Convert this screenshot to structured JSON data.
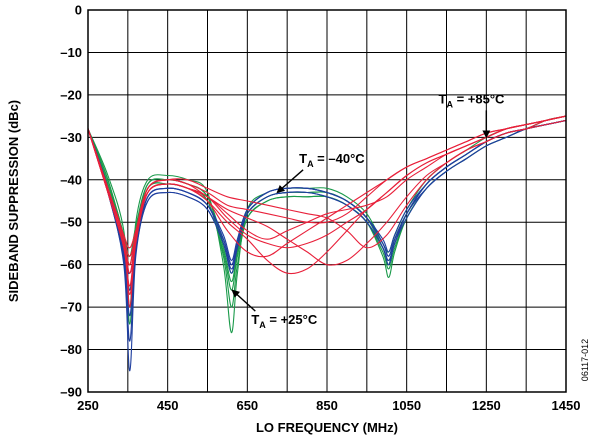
{
  "chart_data": {
    "type": "line",
    "title": "",
    "xlabel": "LO FREQUENCY (MHz)",
    "ylabel": "SIDEBAND SUPPRESSION (dBc)",
    "xlim": [
      250,
      1450
    ],
    "ylim": [
      -90,
      0
    ],
    "xticks": [
      250,
      350,
      450,
      550,
      650,
      750,
      850,
      950,
      1050,
      1150,
      1250,
      1350,
      1450
    ],
    "xtick_labels": [
      "250",
      "",
      "450",
      "",
      "650",
      "",
      "850",
      "",
      "1050",
      "",
      "1250",
      "",
      "1450"
    ],
    "yticks": [
      0,
      -10,
      -20,
      -30,
      -40,
      -50,
      -60,
      -70,
      -80,
      -90
    ],
    "ytick_labels": [
      "0",
      "–10",
      "–20",
      "–30",
      "–40",
      "–50",
      "–60",
      "–70",
      "–80",
      "–90"
    ],
    "grid": true,
    "figure_id": "06117-012",
    "colors": {
      "cold": "#1f3f9f",
      "room": "#1a9a4a",
      "hot": "#e8203a"
    },
    "series": [
      {
        "group": "+25°C",
        "color": "#1a9a4a",
        "x": [
          250,
          300,
          340,
          355,
          370,
          400,
          450,
          500,
          550,
          590,
          610,
          625,
          650,
          700,
          750,
          800,
          850,
          900,
          950,
          990,
          1005,
          1020,
          1050,
          1100,
          1150,
          1200,
          1250,
          1300,
          1350,
          1400,
          1450
        ],
        "y": [
          -28,
          -40,
          -54,
          -60,
          -52,
          -41,
          -40,
          -41,
          -44,
          -56,
          -64,
          -57,
          -48,
          -44,
          -43,
          -43,
          -43,
          -45,
          -49,
          -56,
          -59,
          -55,
          -48,
          -41,
          -37,
          -34,
          -31,
          -29,
          -28,
          -26,
          -25
        ]
      },
      {
        "group": "+25°C",
        "color": "#1a9a4a",
        "x": [
          250,
          300,
          340,
          355,
          370,
          400,
          450,
          500,
          550,
          590,
          610,
          625,
          650,
          700,
          750,
          800,
          850,
          900,
          950,
          990,
          1005,
          1020,
          1050,
          1100,
          1150,
          1200,
          1250,
          1300,
          1350,
          1400,
          1450
        ],
        "y": [
          -28,
          -41,
          -55,
          -66,
          -54,
          -42,
          -41,
          -42,
          -45,
          -58,
          -70,
          -60,
          -49,
          -45,
          -44,
          -44,
          -44,
          -46,
          -50,
          -57,
          -61,
          -56,
          -49,
          -42,
          -38,
          -35,
          -32,
          -30,
          -28,
          -27,
          -26
        ]
      },
      {
        "group": "+25°C",
        "color": "#1a9a4a",
        "x": [
          250,
          300,
          340,
          355,
          370,
          400,
          450,
          500,
          550,
          590,
          610,
          625,
          650,
          700,
          750,
          800,
          850,
          900,
          950,
          990,
          1005,
          1020,
          1050,
          1100,
          1150,
          1200,
          1250,
          1300,
          1350,
          1400,
          1450
        ],
        "y": [
          -28,
          -39,
          -52,
          -70,
          -50,
          -40,
          -39,
          -40,
          -43,
          -60,
          -76,
          -62,
          -47,
          -43,
          -42,
          -42,
          -42,
          -44,
          -48,
          -55,
          -57,
          -53,
          -47,
          -40,
          -36,
          -33,
          -30,
          -28,
          -27,
          -26,
          -25
        ]
      },
      {
        "group": "+25°C",
        "color": "#1a9a4a",
        "x": [
          250,
          300,
          340,
          355,
          370,
          400,
          450,
          500,
          550,
          590,
          610,
          625,
          650,
          700,
          750,
          800,
          850,
          900,
          950,
          990,
          1005,
          1020,
          1050,
          1100,
          1150,
          1200,
          1250,
          1300,
          1350,
          1400,
          1450
        ],
        "y": [
          -28,
          -40,
          -53,
          -58,
          -51,
          -41,
          -40,
          -41,
          -44,
          -55,
          -62,
          -56,
          -48,
          -44,
          -43,
          -43,
          -43,
          -45,
          -49,
          -56,
          -60,
          -54,
          -48,
          -41,
          -37,
          -34,
          -31,
          -29,
          -28,
          -26,
          -25
        ]
      },
      {
        "group": "+25°C",
        "color": "#1a9a4a",
        "x": [
          250,
          300,
          340,
          355,
          370,
          400,
          450,
          500,
          550,
          590,
          610,
          625,
          650,
          700,
          750,
          800,
          850,
          900,
          950,
          990,
          1005,
          1020,
          1050,
          1100,
          1150,
          1200,
          1250,
          1300,
          1350,
          1400,
          1450
        ],
        "y": [
          -28,
          -41,
          -54,
          -74,
          -53,
          -42,
          -41,
          -42,
          -45,
          -57,
          -66,
          -58,
          -49,
          -45,
          -44,
          -44,
          -44,
          -46,
          -50,
          -58,
          -63,
          -57,
          -49,
          -42,
          -38,
          -35,
          -32,
          -30,
          -28,
          -27,
          -26
        ]
      },
      {
        "group": "–40°C",
        "color": "#1f3f9f",
        "x": [
          250,
          300,
          340,
          355,
          370,
          400,
          450,
          500,
          550,
          590,
          610,
          625,
          650,
          700,
          750,
          800,
          850,
          900,
          950,
          990,
          1005,
          1020,
          1050,
          1100,
          1150,
          1200,
          1250,
          1300,
          1350,
          1400,
          1450
        ],
        "y": [
          -28,
          -42,
          -58,
          -72,
          -56,
          -44,
          -42,
          -43,
          -46,
          -54,
          -60,
          -55,
          -47,
          -43,
          -42,
          -42,
          -43,
          -45,
          -49,
          -55,
          -58,
          -54,
          -48,
          -41,
          -37,
          -34,
          -31,
          -29,
          -28,
          -27,
          -26
        ]
      },
      {
        "group": "–40°C",
        "color": "#1f3f9f",
        "x": [
          250,
          300,
          340,
          355,
          370,
          400,
          450,
          500,
          550,
          590,
          610,
          625,
          650,
          700,
          750,
          800,
          850,
          900,
          950,
          990,
          1005,
          1020,
          1050,
          1100,
          1150,
          1200,
          1250,
          1300,
          1350,
          1400,
          1450
        ],
        "y": [
          -28,
          -43,
          -60,
          -85,
          -58,
          -45,
          -43,
          -44,
          -47,
          -55,
          -62,
          -56,
          -48,
          -44,
          -43,
          -43,
          -44,
          -46,
          -50,
          -56,
          -60,
          -55,
          -49,
          -42,
          -38,
          -35,
          -32,
          -30,
          -28,
          -27,
          -26
        ]
      },
      {
        "group": "–40°C",
        "color": "#1f3f9f",
        "x": [
          250,
          300,
          340,
          355,
          370,
          400,
          450,
          500,
          550,
          590,
          610,
          625,
          650,
          700,
          750,
          800,
          850,
          900,
          950,
          990,
          1005,
          1020,
          1050,
          1100,
          1150,
          1200,
          1250,
          1300,
          1350,
          1400,
          1450
        ],
        "y": [
          -28,
          -42,
          -57,
          -66,
          -55,
          -44,
          -42,
          -43,
          -46,
          -53,
          -59,
          -54,
          -47,
          -43,
          -42,
          -42,
          -43,
          -45,
          -49,
          -54,
          -57,
          -53,
          -47,
          -41,
          -37,
          -34,
          -31,
          -29,
          -28,
          -27,
          -26
        ]
      },
      {
        "group": "–40°C",
        "color": "#1f3f9f",
        "x": [
          250,
          300,
          340,
          355,
          370,
          400,
          450,
          500,
          550,
          590,
          610,
          625,
          650,
          700,
          750,
          800,
          850,
          900,
          950,
          990,
          1005,
          1020,
          1050,
          1100,
          1150,
          1200,
          1250,
          1300,
          1350,
          1400,
          1450
        ],
        "y": [
          -28,
          -43,
          -59,
          -78,
          -57,
          -45,
          -43,
          -44,
          -47,
          -55,
          -61,
          -56,
          -48,
          -44,
          -43,
          -43,
          -44,
          -46,
          -50,
          -56,
          -59,
          -55,
          -48,
          -42,
          -38,
          -35,
          -32,
          -30,
          -28,
          -27,
          -26
        ]
      },
      {
        "group": "–40°C",
        "color": "#1f3f9f",
        "x": [
          250,
          300,
          340,
          355,
          370,
          400,
          450,
          500,
          550,
          590,
          610,
          625,
          650,
          700,
          750,
          800,
          850,
          900,
          950,
          990,
          1005,
          1020,
          1050,
          1100,
          1150,
          1200,
          1250,
          1300,
          1350,
          1400,
          1450
        ],
        "y": [
          -28,
          -42,
          -58,
          -62,
          -56,
          -44,
          -42,
          -43,
          -46,
          -54,
          -60,
          -55,
          -47,
          -43,
          -42,
          -42,
          -43,
          -45,
          -49,
          -55,
          -58,
          -54,
          -48,
          -41,
          -37,
          -34,
          -31,
          -29,
          -28,
          -27,
          -26
        ]
      },
      {
        "group": "+85°C",
        "color": "#e8203a",
        "x": [
          250,
          300,
          340,
          355,
          370,
          400,
          450,
          500,
          550,
          600,
          650,
          700,
          750,
          800,
          850,
          900,
          950,
          1000,
          1050,
          1100,
          1150,
          1200,
          1250,
          1300,
          1350,
          1400,
          1450
        ],
        "y": [
          -28,
          -42,
          -53,
          -56,
          -52,
          -42,
          -40,
          -41,
          -43,
          -46,
          -47,
          -48,
          -49,
          -50,
          -50,
          -48,
          -44,
          -40,
          -37,
          -35,
          -33,
          -31,
          -29,
          -28,
          -27,
          -26,
          -25
        ]
      },
      {
        "group": "+85°C",
        "color": "#e8203a",
        "x": [
          250,
          300,
          340,
          355,
          370,
          400,
          450,
          500,
          550,
          600,
          650,
          700,
          750,
          800,
          850,
          900,
          950,
          1000,
          1050,
          1100,
          1150,
          1200,
          1250,
          1300,
          1350,
          1400,
          1450
        ],
        "y": [
          -28,
          -43,
          -55,
          -60,
          -53,
          -43,
          -41,
          -42,
          -44,
          -49,
          -53,
          -55,
          -56,
          -55,
          -53,
          -50,
          -47,
          -43,
          -39,
          -36,
          -34,
          -32,
          -30,
          -28,
          -27,
          -26,
          -25
        ]
      },
      {
        "group": "+85°C",
        "color": "#e8203a",
        "x": [
          250,
          300,
          340,
          355,
          370,
          400,
          450,
          500,
          550,
          600,
          650,
          700,
          750,
          800,
          850,
          900,
          950,
          1000,
          1050,
          1100,
          1150,
          1200,
          1250,
          1300,
          1350,
          1400,
          1450
        ],
        "y": [
          -28,
          -43,
          -56,
          -65,
          -54,
          -43,
          -41,
          -42,
          -45,
          -52,
          -57,
          -58,
          -55,
          -52,
          -49,
          -46,
          -43,
          -40,
          -37,
          -35,
          -33,
          -31,
          -29,
          -28,
          -27,
          -26,
          -25
        ]
      },
      {
        "group": "+85°C",
        "color": "#e8203a",
        "x": [
          250,
          300,
          340,
          355,
          370,
          400,
          450,
          500,
          550,
          600,
          650,
          700,
          750,
          800,
          850,
          900,
          950,
          1000,
          1050,
          1100,
          1150,
          1200,
          1250,
          1300,
          1350,
          1400,
          1450
        ],
        "y": [
          -28,
          -42,
          -54,
          -70,
          -53,
          -42,
          -40,
          -41,
          -44,
          -47,
          -49,
          -51,
          -54,
          -57,
          -60,
          -59,
          -55,
          -50,
          -44,
          -39,
          -36,
          -33,
          -31,
          -29,
          -28,
          -26,
          -25
        ]
      },
      {
        "group": "+85°C",
        "color": "#e8203a",
        "x": [
          250,
          300,
          340,
          355,
          370,
          400,
          450,
          500,
          550,
          600,
          650,
          700,
          750,
          800,
          850,
          900,
          950,
          1000,
          1050,
          1100,
          1150,
          1200,
          1250,
          1300,
          1350,
          1400,
          1450
        ],
        "y": [
          -28,
          -42,
          -54,
          -58,
          -53,
          -42,
          -40,
          -40,
          -42,
          -44,
          -45,
          -46,
          -47,
          -48,
          -49,
          -52,
          -56,
          -53,
          -46,
          -40,
          -36,
          -33,
          -31,
          -29,
          -28,
          -27,
          -26
        ]
      },
      {
        "group": "+85°C",
        "color": "#e8203a",
        "x": [
          250,
          300,
          340,
          355,
          370,
          400,
          450,
          500,
          550,
          600,
          650,
          700,
          750,
          800,
          850,
          900,
          950,
          1000,
          1050,
          1100,
          1150,
          1200,
          1250,
          1300,
          1350,
          1400,
          1450
        ],
        "y": [
          -28,
          -43,
          -55,
          -62,
          -54,
          -43,
          -41,
          -42,
          -45,
          -50,
          -54,
          -59,
          -62,
          -61,
          -57,
          -52,
          -47,
          -43,
          -39,
          -36,
          -34,
          -32,
          -30,
          -28,
          -27,
          -26,
          -25
        ]
      },
      {
        "group": "+85°C",
        "color": "#e8203a",
        "x": [
          250,
          300,
          340,
          355,
          370,
          400,
          450,
          500,
          550,
          600,
          650,
          700,
          750,
          800,
          850,
          900,
          950,
          1000,
          1050,
          1100,
          1150,
          1200,
          1250,
          1300,
          1350,
          1400,
          1450
        ],
        "y": [
          -28,
          -43,
          -56,
          -67,
          -55,
          -43,
          -41,
          -42,
          -44,
          -48,
          -52,
          -54,
          -52,
          -50,
          -48,
          -47,
          -46,
          -44,
          -40,
          -37,
          -34,
          -32,
          -30,
          -28,
          -27,
          -26,
          -25
        ]
      }
    ],
    "annotations": [
      {
        "text": "T",
        "sub": "A",
        "suffix": " = +85°C",
        "tx": 1130,
        "ty": -22,
        "ax": 1250,
        "ay": -30
      },
      {
        "text": "T",
        "sub": "A",
        "suffix": " = –40°C",
        "tx": 780,
        "ty": -36,
        "ax": 725,
        "ay": -43
      },
      {
        "text": "T",
        "sub": "A",
        "suffix": " = +25°C",
        "tx": 660,
        "ty": -74,
        "ax": 612,
        "ay": -66
      }
    ]
  }
}
